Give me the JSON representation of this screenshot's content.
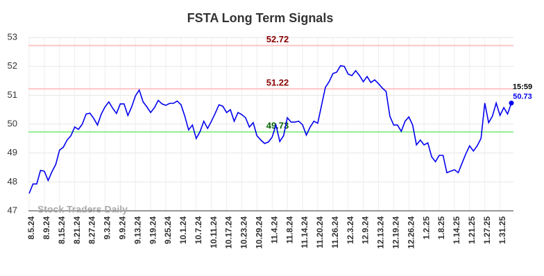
{
  "chart_data": {
    "type": "line",
    "title": "FSTA Long Term Signals",
    "watermark": "Stock Traders Daily",
    "color": "#0000ee",
    "grid": true,
    "ylim": [
      47,
      53
    ],
    "yticks": [
      47,
      48,
      49,
      50,
      51,
      52,
      53
    ],
    "categories": [
      "8.5.24",
      null,
      null,
      null,
      "8.9.24",
      null,
      null,
      null,
      "8.15.24",
      null,
      null,
      null,
      "8.21.24",
      null,
      null,
      null,
      "8.27.24",
      null,
      null,
      null,
      "9.3.24",
      null,
      null,
      null,
      "9.9.24",
      null,
      null,
      null,
      "9.13.24",
      null,
      null,
      null,
      "9.19.24",
      null,
      null,
      null,
      "9.25.24",
      null,
      null,
      null,
      "10.1.24",
      null,
      null,
      null,
      "10.7.24",
      null,
      null,
      null,
      "10.11.24",
      null,
      null,
      null,
      "10.17.24",
      null,
      null,
      null,
      "10.23.24",
      null,
      null,
      null,
      "10.29.24",
      null,
      null,
      null,
      "11.4.24",
      null,
      null,
      null,
      "11.8.24",
      null,
      null,
      null,
      "11.14.24",
      null,
      null,
      null,
      "11.20.24",
      null,
      null,
      null,
      "11.26.24",
      null,
      null,
      null,
      "12.3.24",
      null,
      null,
      null,
      "12.9.24",
      null,
      null,
      null,
      "12.13.24",
      null,
      null,
      null,
      "12.19.24",
      null,
      null,
      null,
      "12.26.24",
      null,
      null,
      null,
      "1.2.25",
      null,
      null,
      null,
      "1.8.25",
      null,
      null,
      null,
      "1.14.25",
      null,
      null,
      null,
      "1.21.25",
      null,
      null,
      null,
      "1.27.25",
      null,
      null,
      null,
      "1.31.25",
      null,
      null,
      null
    ],
    "values": [
      47.6,
      47.93,
      47.93,
      48.4,
      48.37,
      48.05,
      48.35,
      48.6,
      49.1,
      49.2,
      49.45,
      49.6,
      49.9,
      49.82,
      50.0,
      50.35,
      50.38,
      50.2,
      49.97,
      50.35,
      50.6,
      50.77,
      50.55,
      50.37,
      50.7,
      50.7,
      50.3,
      50.6,
      50.98,
      51.18,
      50.77,
      50.6,
      50.4,
      50.57,
      50.82,
      50.7,
      50.65,
      50.72,
      50.72,
      50.8,
      50.67,
      50.27,
      49.8,
      49.97,
      49.5,
      49.74,
      50.1,
      49.85,
      50.1,
      50.37,
      50.67,
      50.62,
      50.4,
      50.5,
      50.1,
      50.4,
      50.33,
      50.22,
      49.9,
      50.05,
      49.6,
      49.45,
      49.33,
      49.38,
      49.55,
      49.97,
      49.4,
      49.6,
      50.22,
      50.07,
      50.07,
      50.1,
      49.98,
      49.62,
      49.9,
      50.1,
      50.03,
      50.65,
      51.27,
      51.47,
      51.75,
      51.8,
      52.02,
      52.0,
      51.73,
      51.68,
      51.85,
      51.68,
      51.47,
      51.65,
      51.44,
      51.53,
      51.4,
      51.25,
      51.13,
      50.27,
      49.97,
      49.97,
      49.75,
      50.1,
      50.25,
      49.97,
      49.28,
      49.45,
      49.28,
      49.35,
      48.87,
      48.7,
      48.92,
      48.92,
      48.32,
      48.37,
      48.42,
      48.32,
      48.65,
      48.97,
      49.25,
      49.07,
      49.25,
      49.5,
      50.73,
      50.05,
      50.27,
      50.73,
      50.3,
      50.57,
      50.35,
      50.73
    ],
    "reference_lines": [
      {
        "value": 52.72,
        "color": "#ffc4c4",
        "label_color": "#8b0000"
      },
      {
        "value": 51.22,
        "color": "#ffc4c4",
        "label_color": "#8b0000"
      },
      {
        "value": 49.73,
        "color": "#90ee90",
        "label_color": "#006400"
      }
    ],
    "last_time": "15:59"
  }
}
